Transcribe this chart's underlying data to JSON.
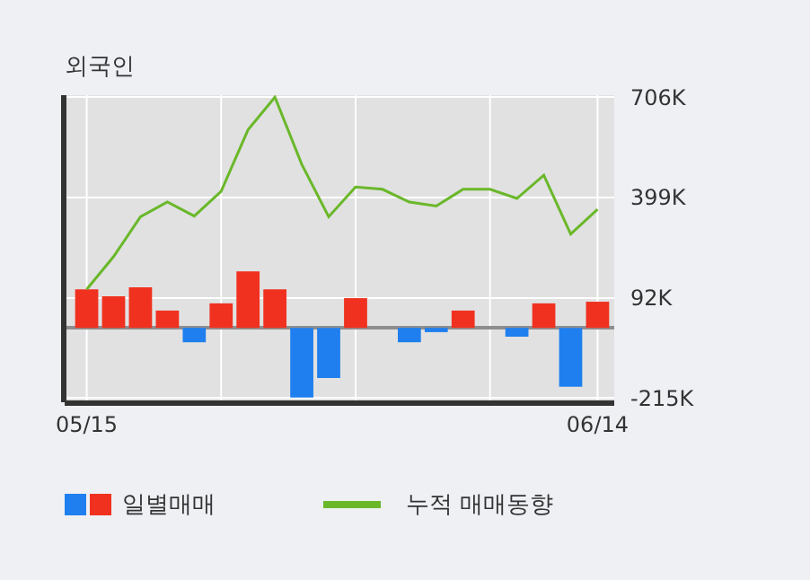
{
  "chart_data": {
    "type": "bar",
    "title": "외국인",
    "categories": [
      "05/15",
      null,
      null,
      null,
      null,
      null,
      null,
      null,
      null,
      null,
      null,
      null,
      null,
      null,
      null,
      null,
      null,
      null,
      null,
      "06/14"
    ],
    "series": [
      {
        "name": "일별매매",
        "colors": [
          "#f0311f",
          "#f0311f",
          "#f0311f",
          "#f0311f",
          "#1f7fef",
          "#f0311f",
          "#f0311f",
          "#f0311f",
          "#1f7fef",
          "#1f7fef",
          "#f0311f",
          "#f0311f",
          "#1f7fef",
          "#1f7fef",
          "#f0311f",
          "#f0311f",
          "#1f7fef",
          "#f0311f",
          "#1f7fef",
          "#f0311f"
        ],
        "values": [
          118,
          97,
          124,
          53,
          -44,
          75,
          173,
          118,
          -213,
          -153,
          91,
          0,
          -44,
          -13,
          53,
          0,
          -27,
          75,
          -180,
          80
        ]
      },
      {
        "name": "누적 매매동향",
        "type": "line",
        "color": "#6ab82a",
        "values": [
          118,
          218,
          340,
          385,
          342,
          418,
          606,
          706,
          500,
          340,
          431,
          424,
          385,
          373,
          424,
          424,
          396,
          467,
          287,
          363
        ]
      }
    ],
    "ylim": [
      -222,
      712
    ],
    "yticks": [
      {
        "value": 706,
        "label": "706K"
      },
      {
        "value": 399,
        "label": "399K"
      },
      {
        "value": 92,
        "label": "92K"
      },
      {
        "value": -215,
        "label": "-215K"
      }
    ],
    "grid": true,
    "legend": "bottom"
  }
}
